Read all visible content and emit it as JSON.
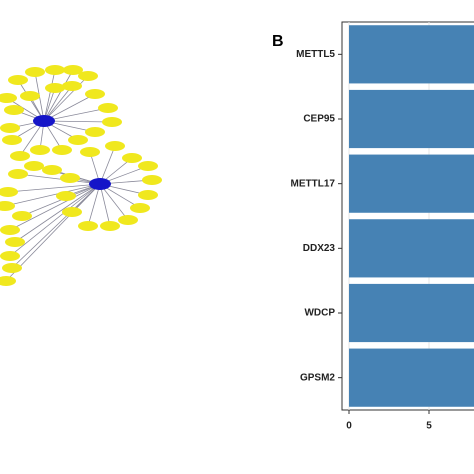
{
  "chart_data": {
    "type": "bar",
    "orientation": "horizontal",
    "panel_label": "B",
    "categories": [
      "METTL5",
      "CEP95",
      "METTL17",
      "DDX23",
      "WDCP",
      "GPSM2"
    ],
    "values": [
      8,
      8,
      8,
      8,
      8,
      8
    ],
    "color": "#4682b4",
    "xlim": [
      0,
      8
    ],
    "xticks": [
      0,
      5
    ],
    "grid": true
  }
}
